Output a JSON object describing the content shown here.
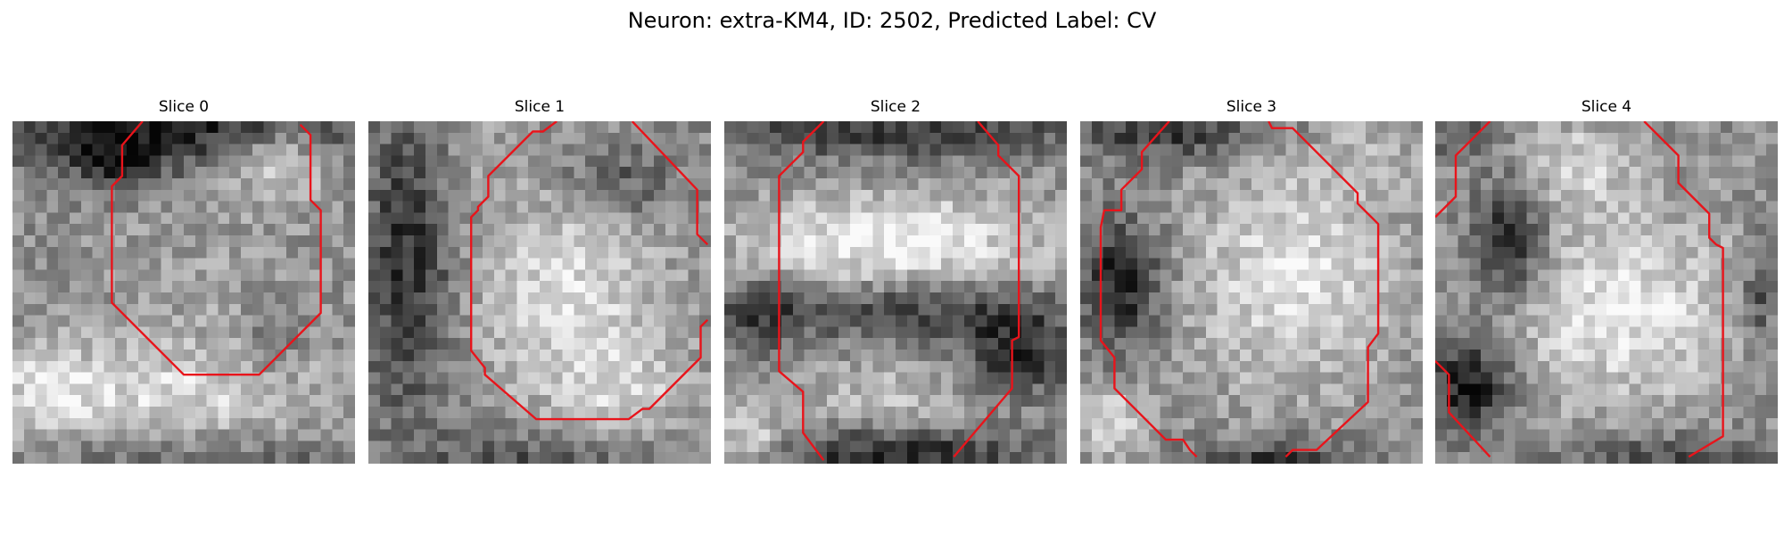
{
  "figure": {
    "title": "Neuron: extra-KM4, ID: 2502, Predicted Label: CV"
  },
  "colors": {
    "contour": "#e8141b",
    "image_colormap": "gray"
  },
  "panels": [
    {
      "title": "Slice 0"
    },
    {
      "title": "Slice 1"
    },
    {
      "title": "Slice 2"
    },
    {
      "title": "Slice 3"
    },
    {
      "title": "Slice 4"
    }
  ]
}
